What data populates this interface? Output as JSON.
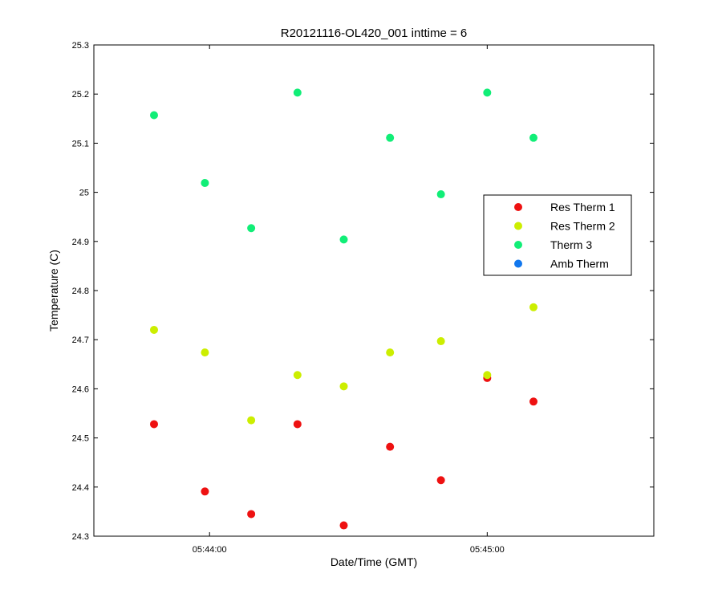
{
  "chart_data": {
    "type": "scatter",
    "title": "R20121116-OL420_001 inttime = 6",
    "xlabel": "Date/Time (GMT)",
    "ylabel": "Temperature (C)",
    "x_unit": "time of day (GMT)",
    "xlim": [
      "05:43:35",
      "05:45:36"
    ],
    "ylim": [
      24.3,
      25.3
    ],
    "xticks": [
      "05:44:00",
      "05:45:00"
    ],
    "yticks": [
      "24.3",
      "24.4",
      "24.5",
      "24.6",
      "24.7",
      "24.8",
      "24.9",
      "25",
      "25.1",
      "25.2",
      "25.3"
    ],
    "grid": false,
    "legend_position": "right",
    "x": [
      "05:43:48",
      "05:43:59",
      "05:44:09",
      "05:44:19",
      "05:44:29",
      "05:44:39",
      "05:44:50",
      "05:45:00",
      "05:45:10"
    ],
    "series": [
      {
        "name": "Res Therm 1",
        "color": "#ee1111",
        "values": [
          24.528,
          24.391,
          24.345,
          24.528,
          24.322,
          24.482,
          24.414,
          24.622,
          24.574
        ]
      },
      {
        "name": "Res Therm 2",
        "color": "#ccee00",
        "values": [
          24.72,
          24.674,
          24.536,
          24.628,
          24.605,
          24.674,
          24.697,
          24.628,
          24.766
        ]
      },
      {
        "name": "Therm 3",
        "color": "#11ee77",
        "values": [
          25.157,
          25.019,
          24.927,
          25.203,
          24.904,
          25.111,
          24.996,
          25.203,
          25.111
        ]
      },
      {
        "name": "Amb Therm",
        "color": "#1177ee",
        "values": []
      }
    ]
  }
}
